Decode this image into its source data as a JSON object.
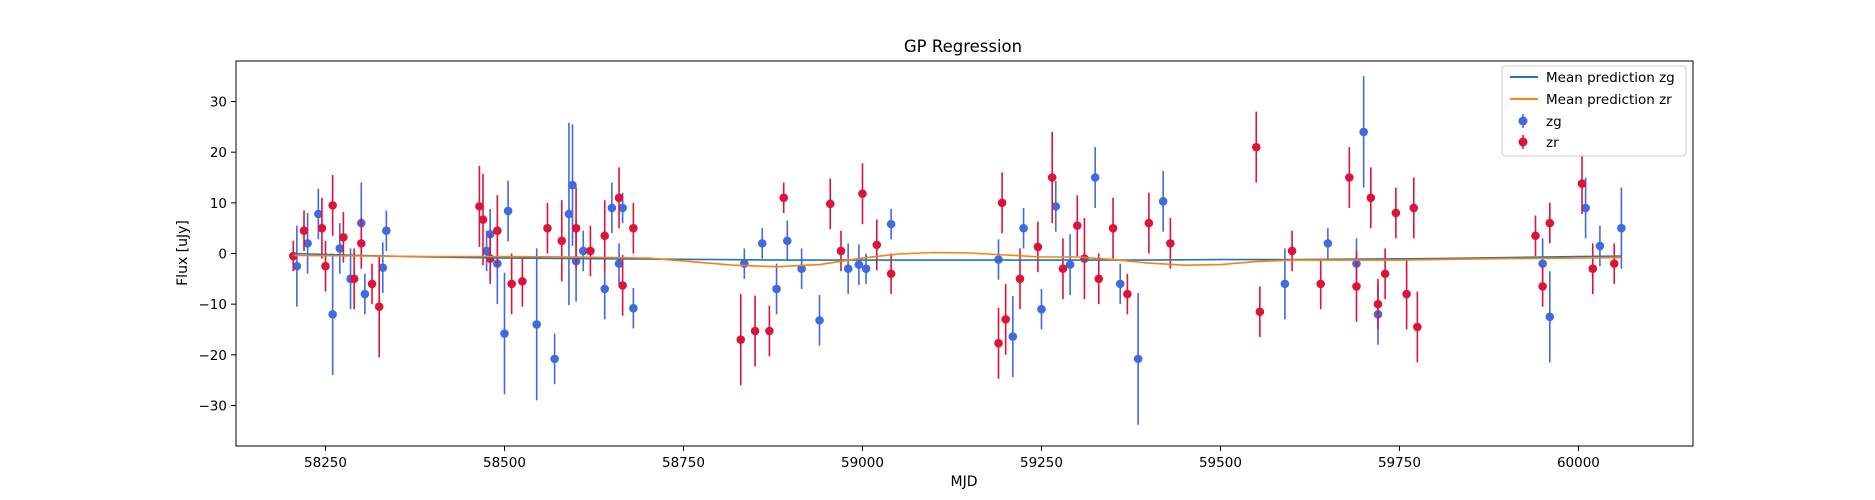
{
  "chart_data": {
    "type": "scatter",
    "title": "GP Regression",
    "xlabel": "MJD",
    "ylabel": "Flux [uJy]",
    "xlim": [
      58125,
      60160
    ],
    "ylim": [
      -38,
      38
    ],
    "xticks": [
      58250,
      58500,
      58750,
      59000,
      59250,
      59500,
      59750,
      60000
    ],
    "yticks": [
      -30,
      -20,
      -10,
      0,
      10,
      20,
      30
    ],
    "xtick_labels": [
      "58250",
      "58500",
      "58750",
      "59000",
      "59250",
      "59500",
      "59750",
      "60000"
    ],
    "ytick_labels": [
      "−30",
      "−20",
      "−10",
      "0",
      "10",
      "20",
      "30"
    ],
    "grid": false,
    "legend": {
      "position": "top-right",
      "entries": [
        {
          "label": "Mean prediction zg",
          "kind": "line",
          "color": "#1f77b4"
        },
        {
          "label": "Mean prediction zr",
          "kind": "line",
          "color": "#ff7f0e"
        },
        {
          "label": "zg",
          "kind": "errorbar",
          "color": "#4169e1"
        },
        {
          "label": "zr",
          "kind": "errorbar",
          "color": "#dc143c"
        }
      ]
    },
    "series": [
      {
        "name": "Mean prediction zg",
        "kind": "line",
        "color": "#1f77b4",
        "x": [
          58205,
          58300,
          58400,
          58500,
          58600,
          58700,
          58800,
          58900,
          59000,
          59100,
          59200,
          59300,
          59400,
          59500,
          59600,
          59700,
          59800,
          59900,
          60000,
          60060
        ],
        "y": [
          0.0,
          -0.4,
          -0.7,
          -0.9,
          -1.0,
          -1.1,
          -1.2,
          -1.3,
          -1.3,
          -1.3,
          -1.3,
          -1.3,
          -1.3,
          -1.2,
          -1.2,
          -1.1,
          -1.0,
          -0.8,
          -0.6,
          -0.5
        ]
      },
      {
        "name": "Mean prediction zr",
        "kind": "line",
        "color": "#ff7f0e",
        "x": [
          58205,
          58300,
          58400,
          58500,
          58600,
          58700,
          58760,
          58820,
          58880,
          58940,
          59000,
          59050,
          59100,
          59150,
          59200,
          59250,
          59300,
          59350,
          59400,
          59450,
          59500,
          59550,
          59600,
          59650,
          59700,
          59750,
          59800,
          59900,
          60000,
          60060
        ],
        "y": [
          -0.4,
          -0.5,
          -0.6,
          -0.6,
          -0.7,
          -0.9,
          -1.6,
          -2.3,
          -2.6,
          -2.2,
          -0.9,
          -0.1,
          0.2,
          0.1,
          -0.3,
          -0.7,
          -0.7,
          -1.2,
          -1.9,
          -2.3,
          -2.2,
          -1.6,
          -1.3,
          -1.3,
          -1.3,
          -1.3,
          -1.2,
          -1.0,
          -0.9,
          -0.8
        ]
      },
      {
        "name": "zg",
        "kind": "errorbar",
        "color": "#4169e1",
        "x": [
          58210,
          58225,
          58240,
          58260,
          58270,
          58285,
          58300,
          58305,
          58330,
          58335,
          58475,
          58480,
          58490,
          58500,
          58505,
          58545,
          58570,
          58590,
          58595,
          58600,
          58610,
          58640,
          58650,
          58660,
          58665,
          58680,
          58835,
          58860,
          58880,
          58895,
          58915,
          58940,
          58980,
          58995,
          59005,
          59040,
          59190,
          59210,
          59225,
          59250,
          59270,
          59290,
          59325,
          59360,
          59385,
          59420,
          59590,
          59650,
          59690,
          59700,
          59720,
          59950,
          59960,
          60010,
          60030,
          60060
        ],
        "y": [
          -2.5,
          2.0,
          7.8,
          -12.0,
          1.0,
          -5.0,
          6.0,
          -8.0,
          -2.8,
          4.5,
          0.5,
          3.8,
          -2.0,
          -15.8,
          8.4,
          -14.0,
          -20.8,
          7.8,
          13.5,
          -1.5,
          0.5,
          -7.0,
          9.0,
          -2.0,
          9.0,
          -10.8,
          -2.0,
          2.0,
          -7.0,
          2.5,
          -3.0,
          -13.2,
          -3.0,
          -2.2,
          -3.0,
          5.8,
          -1.2,
          -16.4,
          5.0,
          -11.0,
          9.3,
          -2.2,
          15.0,
          -6.0,
          -20.8,
          10.3,
          -6.0,
          2.0,
          -2.0,
          24.0,
          -12.0,
          -2.0,
          -12.5,
          9.0,
          1.5,
          5.0
        ],
        "yerr": [
          8,
          6,
          5,
          12,
          5,
          6,
          8,
          4,
          5,
          4,
          4,
          5,
          8,
          12,
          6,
          15,
          5,
          18,
          12,
          8,
          4,
          6,
          5,
          4,
          3,
          4,
          3,
          3,
          5,
          4,
          4,
          5,
          5,
          4,
          3,
          3,
          4,
          8,
          4,
          4,
          5,
          6,
          6,
          4,
          13,
          6,
          7,
          3,
          5,
          11,
          6,
          5,
          9,
          6,
          4,
          8
        ]
      },
      {
        "name": "zr",
        "kind": "errorbar",
        "color": "#dc143c",
        "x": [
          58205,
          58220,
          58245,
          58250,
          58260,
          58275,
          58290,
          58300,
          58315,
          58325,
          58465,
          58470,
          58480,
          58490,
          58510,
          58525,
          58560,
          58580,
          58600,
          58620,
          58640,
          58660,
          58665,
          58680,
          58830,
          58850,
          58870,
          58890,
          58955,
          58970,
          59000,
          59020,
          59040,
          59190,
          59195,
          59200,
          59220,
          59245,
          59265,
          59280,
          59300,
          59310,
          59330,
          59350,
          59370,
          59400,
          59430,
          59550,
          59555,
          59600,
          59640,
          59680,
          59690,
          59710,
          59720,
          59730,
          59745,
          59760,
          59770,
          59775,
          59940,
          59950,
          59960,
          60005,
          60020,
          60050
        ],
        "y": [
          -0.5,
          4.5,
          5.0,
          -2.5,
          9.5,
          3.2,
          -5.0,
          2.0,
          -6.0,
          -10.5,
          9.3,
          6.7,
          -1.0,
          4.5,
          -6.0,
          -5.5,
          5.0,
          2.5,
          5.0,
          0.5,
          3.5,
          11.0,
          -6.3,
          5.0,
          -17.0,
          -15.3,
          -15.3,
          11.0,
          9.8,
          0.5,
          11.8,
          1.7,
          -4.0,
          -17.7,
          10.0,
          -13.0,
          -5.0,
          1.3,
          15.0,
          -3.0,
          5.5,
          -1.0,
          -5.0,
          5.0,
          -8.0,
          6.0,
          2.0,
          21.0,
          -11.5,
          0.5,
          -6.0,
          15.0,
          -6.5,
          11.0,
          -10.0,
          -4.0,
          8.0,
          -8.0,
          9.0,
          -14.5,
          3.5,
          -6.5,
          6.0,
          13.8,
          -3.0,
          -2.0
        ],
        "yerr": [
          3,
          4,
          6,
          5,
          6,
          5,
          6,
          5,
          4,
          10,
          8,
          9,
          5,
          7,
          6,
          5,
          5,
          8,
          8,
          5,
          7,
          6,
          6,
          5,
          9,
          7,
          5,
          3,
          5,
          4,
          6,
          5,
          4,
          7,
          6,
          7,
          6,
          5,
          9,
          6,
          6,
          8,
          5,
          6,
          4,
          6,
          5,
          7,
          5,
          4,
          5,
          6,
          7,
          6,
          5,
          5,
          5,
          7,
          6,
          7,
          4,
          4,
          4,
          6,
          5,
          4
        ]
      }
    ]
  }
}
